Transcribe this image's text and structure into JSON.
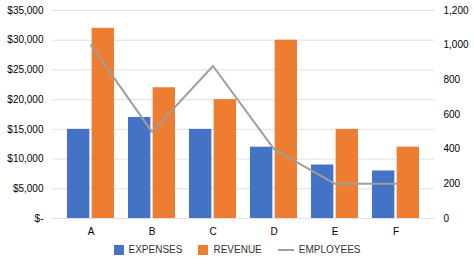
{
  "chart_data": {
    "type": "bar",
    "categories": [
      "A",
      "B",
      "C",
      "D",
      "E",
      "F"
    ],
    "series": [
      {
        "name": "EXPENSES",
        "color": "#4472C4",
        "values": [
          15000,
          17000,
          15000,
          12000,
          9000,
          8000
        ]
      },
      {
        "name": "REVENUE",
        "color": "#ED7D31",
        "values": [
          32000,
          22000,
          20000,
          30000,
          15000,
          12000
        ]
      },
      {
        "name": "EMPLOYEES",
        "color": "#9E9E9E",
        "values": [
          1000,
          500,
          880,
          400,
          200,
          200
        ],
        "type": "line",
        "axis": "y2"
      }
    ],
    "ylim": [
      0,
      35000
    ],
    "yticks": [
      {
        "value": 0,
        "label": "$-"
      },
      {
        "value": 5000,
        "label": "$5,000"
      },
      {
        "value": 10000,
        "label": "$10,000"
      },
      {
        "value": 15000,
        "label": "$15,000"
      },
      {
        "value": 20000,
        "label": "$20,000"
      },
      {
        "value": 25000,
        "label": "$25,000"
      },
      {
        "value": 30000,
        "label": "$30,000"
      },
      {
        "value": 35000,
        "label": "$35,000"
      }
    ],
    "y2lim": [
      0,
      1200
    ],
    "y2ticks": [
      0,
      200,
      400,
      600,
      800,
      {
        "value": 1000,
        "label": "1,000"
      },
      {
        "value": 1200,
        "label": "1,200"
      }
    ],
    "grid": true,
    "legend": "bottom"
  }
}
